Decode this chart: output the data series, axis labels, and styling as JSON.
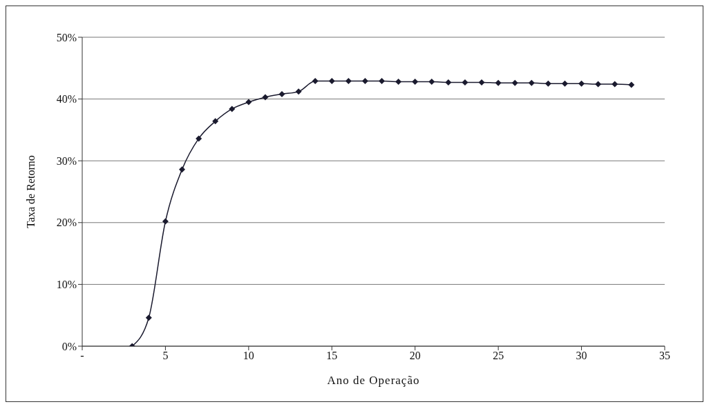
{
  "chart_data": {
    "type": "line",
    "xlabel": "Ano de Operação",
    "ylabel": "Taxa de Retorno",
    "x": [
      3,
      4,
      5,
      6,
      7,
      8,
      9,
      10,
      11,
      12,
      13,
      14,
      15,
      16,
      17,
      18,
      19,
      20,
      21,
      22,
      23,
      24,
      25,
      26,
      27,
      28,
      29,
      30,
      31,
      32,
      33
    ],
    "series": [
      {
        "color": "#1a1a2e",
        "values": [
          0,
          4.6,
          20.2,
          28.6,
          33.6,
          36.4,
          38.4,
          39.5,
          40.3,
          40.8,
          41.2,
          42.9,
          42.9,
          42.9,
          42.9,
          42.9,
          42.8,
          42.8,
          42.8,
          42.7,
          42.7,
          42.7,
          42.6,
          42.6,
          42.6,
          42.5,
          42.5,
          42.5,
          42.4,
          42.4,
          42.3
        ]
      }
    ],
    "xlim": [
      0,
      35
    ],
    "xticks": [
      {
        "value": 0,
        "label": "-"
      },
      5,
      10,
      15,
      20,
      25,
      30,
      35
    ],
    "ylim": [
      0,
      50
    ],
    "yticks": [
      {
        "value": 0,
        "label": "0%"
      },
      {
        "value": 10,
        "label": "10%"
      },
      {
        "value": 20,
        "label": "20%"
      },
      {
        "value": 30,
        "label": "30%"
      },
      {
        "value": 40,
        "label": "40%"
      },
      {
        "value": 50,
        "label": "50%"
      }
    ],
    "grid": "y",
    "legend": false,
    "marker": "diamond",
    "line_style": "solid"
  }
}
